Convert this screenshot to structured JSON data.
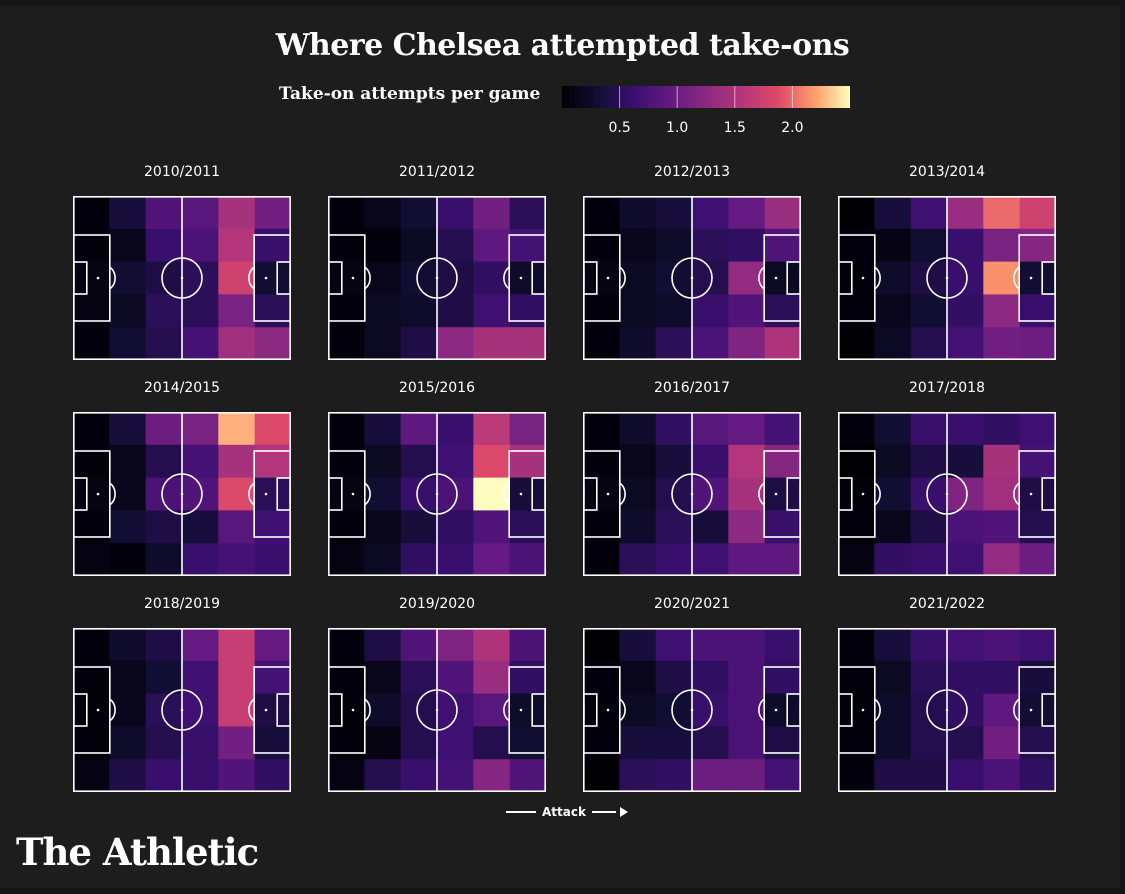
{
  "title": "Where Chelsea attempted take-ons",
  "legend": {
    "label": "Take-on attempts per game",
    "ticks": [
      "0.5",
      "1.0",
      "1.5",
      "2.0"
    ],
    "tick_values": [
      0.5,
      1.0,
      1.5,
      2.0
    ],
    "range": [
      0,
      2.5
    ],
    "colormap": "magma"
  },
  "attack_label": "Attack",
  "brand": "The Athletic",
  "chart_data": {
    "type": "heatmap",
    "title": "Where Chelsea attempted take-ons",
    "colorbar_label": "Take-on attempts per game",
    "colorbar_range": [
      0,
      2.5
    ],
    "grid": "6 columns (defensive to attacking third) x 5 rows (top to bottom of pitch)",
    "seasons": [
      {
        "season": "2010/2011",
        "values": [
          [
            0.05,
            0.35,
            0.8,
            0.85,
            1.45,
            1.05
          ],
          [
            0.05,
            0.15,
            0.6,
            0.75,
            1.55,
            0.6
          ],
          [
            0.1,
            0.3,
            0.4,
            0.5,
            1.75,
            0.3
          ],
          [
            0.1,
            0.2,
            0.5,
            0.5,
            1.1,
            0.5
          ],
          [
            0.05,
            0.3,
            0.45,
            0.7,
            1.4,
            1.25
          ]
        ]
      },
      {
        "season": "2011/2012",
        "values": [
          [
            0.05,
            0.15,
            0.3,
            0.6,
            1.05,
            0.5
          ],
          [
            0.05,
            0.05,
            0.2,
            0.45,
            0.9,
            0.7
          ],
          [
            0.1,
            0.15,
            0.3,
            0.4,
            0.55,
            0.25
          ],
          [
            0.05,
            0.2,
            0.25,
            0.4,
            0.65,
            0.55
          ],
          [
            0.05,
            0.2,
            0.4,
            1.25,
            1.45,
            1.45
          ]
        ]
      },
      {
        "season": "2012/2013",
        "values": [
          [
            0.05,
            0.25,
            0.35,
            0.65,
            0.95,
            1.35
          ],
          [
            0.05,
            0.15,
            0.25,
            0.5,
            0.55,
            0.8
          ],
          [
            0.1,
            0.2,
            0.3,
            0.45,
            1.3,
            0.2
          ],
          [
            0.05,
            0.2,
            0.25,
            0.6,
            0.8,
            0.5
          ],
          [
            0.05,
            0.25,
            0.5,
            0.75,
            1.15,
            1.5
          ]
        ]
      },
      {
        "season": "2013/2014",
        "values": [
          [
            0.0,
            0.35,
            0.65,
            1.35,
            2.0,
            1.75
          ],
          [
            0.05,
            0.1,
            0.3,
            0.6,
            1.1,
            1.2
          ],
          [
            0.05,
            0.25,
            0.4,
            0.6,
            2.15,
            0.3
          ],
          [
            0.05,
            0.15,
            0.3,
            0.55,
            1.25,
            0.6
          ],
          [
            0.0,
            0.2,
            0.45,
            0.7,
            1.05,
            1.0
          ]
        ]
      },
      {
        "season": "2014/2015",
        "values": [
          [
            0.05,
            0.35,
            1.0,
            1.1,
            2.25,
            1.85
          ],
          [
            0.05,
            0.15,
            0.45,
            0.7,
            1.45,
            1.55
          ],
          [
            0.1,
            0.15,
            0.75,
            0.8,
            1.85,
            0.5
          ],
          [
            0.05,
            0.3,
            0.4,
            0.35,
            0.85,
            0.65
          ],
          [
            0.1,
            0.05,
            0.25,
            0.6,
            0.7,
            0.6
          ]
        ]
      },
      {
        "season": "2015/2016",
        "values": [
          [
            0.05,
            0.35,
            0.9,
            0.6,
            1.6,
            1.1
          ],
          [
            0.05,
            0.2,
            0.45,
            0.65,
            1.85,
            1.45
          ],
          [
            0.1,
            0.3,
            0.6,
            0.75,
            2.5,
            0.35
          ],
          [
            0.05,
            0.15,
            0.35,
            0.55,
            0.8,
            0.5
          ],
          [
            0.1,
            0.2,
            0.55,
            0.6,
            0.95,
            0.75
          ]
        ]
      },
      {
        "season": "2016/2017",
        "values": [
          [
            0.05,
            0.25,
            0.55,
            0.85,
            0.95,
            0.7
          ],
          [
            0.05,
            0.15,
            0.35,
            0.6,
            1.55,
            1.2
          ],
          [
            0.1,
            0.2,
            0.45,
            0.8,
            1.45,
            0.4
          ],
          [
            0.05,
            0.25,
            0.5,
            0.35,
            1.25,
            0.6
          ],
          [
            0.05,
            0.5,
            0.6,
            0.65,
            0.9,
            0.9
          ]
        ]
      },
      {
        "season": "2017/2018",
        "values": [
          [
            0.05,
            0.3,
            0.6,
            0.6,
            0.55,
            0.65
          ],
          [
            0.0,
            0.2,
            0.4,
            0.35,
            1.45,
            0.7
          ],
          [
            0.05,
            0.3,
            0.6,
            1.15,
            1.4,
            0.4
          ],
          [
            0.05,
            0.15,
            0.4,
            0.75,
            0.8,
            0.45
          ],
          [
            0.1,
            0.55,
            0.6,
            0.65,
            1.3,
            1.0
          ]
        ]
      },
      {
        "season": "2018/2019",
        "values": [
          [
            0.05,
            0.25,
            0.4,
            0.95,
            1.7,
            0.95
          ],
          [
            0.05,
            0.15,
            0.3,
            0.65,
            1.7,
            0.7
          ],
          [
            0.05,
            0.15,
            0.5,
            0.65,
            1.7,
            0.4
          ],
          [
            0.05,
            0.25,
            0.45,
            0.6,
            1.05,
            0.35
          ],
          [
            0.1,
            0.4,
            0.6,
            0.6,
            0.8,
            0.55
          ]
        ]
      },
      {
        "season": "2019/2020",
        "values": [
          [
            0.05,
            0.4,
            0.8,
            1.15,
            1.5,
            0.75
          ],
          [
            0.05,
            0.15,
            0.5,
            0.8,
            1.35,
            0.55
          ],
          [
            0.05,
            0.25,
            0.45,
            0.65,
            0.85,
            0.25
          ],
          [
            0.05,
            0.1,
            0.45,
            0.65,
            0.45,
            0.3
          ],
          [
            0.1,
            0.45,
            0.6,
            0.7,
            1.2,
            0.8
          ]
        ]
      },
      {
        "season": "2020/2021",
        "values": [
          [
            0.0,
            0.35,
            0.65,
            0.75,
            0.75,
            0.6
          ],
          [
            0.05,
            0.15,
            0.4,
            0.55,
            0.75,
            0.55
          ],
          [
            0.05,
            0.2,
            0.3,
            0.6,
            0.75,
            0.25
          ],
          [
            0.05,
            0.35,
            0.35,
            0.45,
            0.75,
            0.4
          ],
          [
            0.0,
            0.5,
            0.55,
            1.0,
            1.0,
            0.7
          ]
        ]
      },
      {
        "season": "2021/2022",
        "values": [
          [
            0.05,
            0.35,
            0.6,
            0.7,
            0.75,
            0.65
          ],
          [
            0.05,
            0.2,
            0.5,
            0.55,
            0.55,
            0.35
          ],
          [
            0.05,
            0.25,
            0.45,
            0.55,
            0.9,
            0.3
          ],
          [
            0.05,
            0.25,
            0.45,
            0.45,
            1.05,
            0.45
          ],
          [
            0.05,
            0.4,
            0.4,
            0.6,
            0.75,
            0.55
          ]
        ]
      }
    ]
  }
}
